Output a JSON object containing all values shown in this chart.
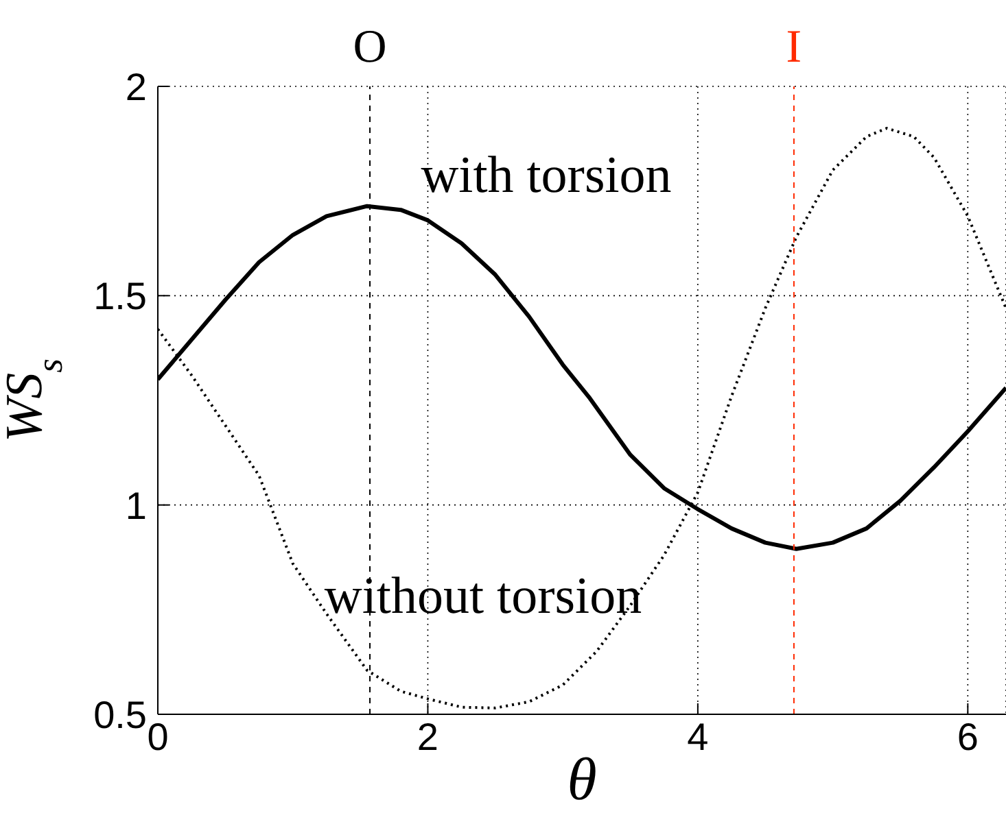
{
  "chart_data": {
    "type": "line",
    "xlabel": "θ",
    "ylabel": "WS$_{s}$",
    "xlim": [
      0,
      6.283
    ],
    "ylim": [
      0.5,
      2
    ],
    "xticks": [
      0,
      2,
      4,
      6
    ],
    "yticks": [
      0.5,
      1,
      1.5,
      2
    ],
    "grid": true,
    "marker": "none",
    "series": [
      {
        "color": "#000000",
        "line_style": "solid",
        "x": [
          0,
          0.5,
          0.75,
          1,
          1.25,
          1.55,
          1.8,
          2,
          2.25,
          2.5,
          2.75,
          3,
          3.2,
          3.5,
          3.75,
          4,
          4.25,
          4.5,
          4.73,
          5,
          5.25,
          5.5,
          5.75,
          6,
          6.283
        ],
        "values": [
          1.3,
          1.49,
          1.58,
          1.645,
          1.69,
          1.714,
          1.705,
          1.68,
          1.625,
          1.55,
          1.45,
          1.335,
          1.255,
          1.12,
          1.04,
          0.99,
          0.944,
          0.91,
          0.895,
          0.91,
          0.944,
          1.01,
          1.09,
          1.176,
          1.28
        ]
      },
      {
        "color": "#000000",
        "line_style": "dotted",
        "x": [
          0,
          0.25,
          0.5,
          0.75,
          1,
          1.25,
          1.55,
          1.8,
          2,
          2.25,
          2.5,
          2.75,
          3,
          3.25,
          3.5,
          3.75,
          4,
          4.25,
          4.5,
          4.73,
          5,
          5.25,
          5.4,
          5.6,
          5.75,
          6,
          6.283
        ],
        "values": [
          1.42,
          1.31,
          1.19,
          1.07,
          0.86,
          0.74,
          0.605,
          0.555,
          0.537,
          0.517,
          0.515,
          0.53,
          0.57,
          0.65,
          0.76,
          0.88,
          1.03,
          1.26,
          1.47,
          1.64,
          1.8,
          1.88,
          1.9,
          1.88,
          1.83,
          1.69,
          1.47
        ]
      }
    ],
    "ref_lines": [
      {
        "axis": "x",
        "value": 1.571,
        "label": "O",
        "color": "#000000",
        "line_style": "dashed"
      },
      {
        "axis": "x",
        "value": 4.712,
        "label": "I",
        "color": "#ff2a00",
        "line_style": "dashed"
      }
    ],
    "annotations": [
      "with torsion",
      "without torsion"
    ]
  }
}
